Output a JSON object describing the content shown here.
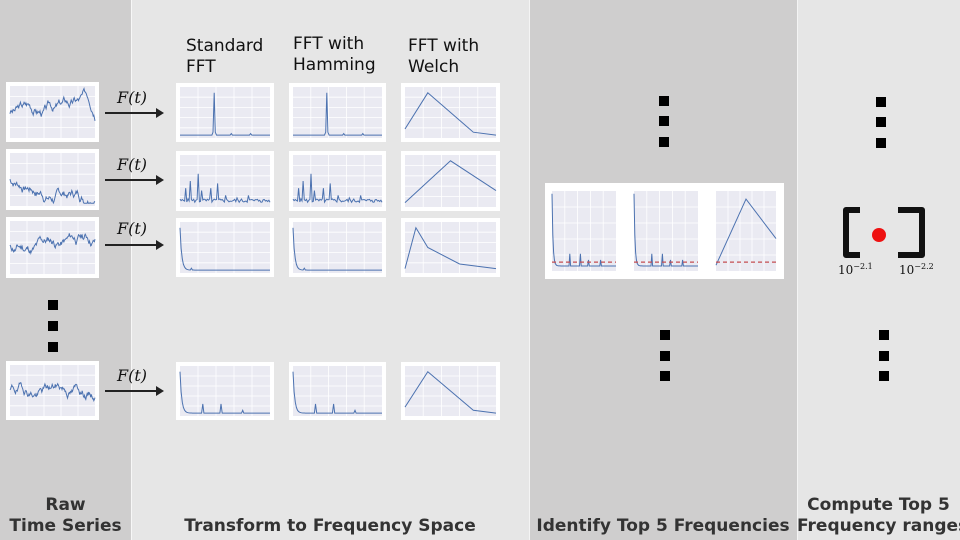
{
  "stages": {
    "raw": "Raw\nTime Series",
    "transform": "Transform to Frequency Space",
    "identify": "Identify Top 5 Frequencies",
    "compute": "Compute Top 5\nFrequency ranges"
  },
  "columns": {
    "fft": "Standard\nFFT",
    "hamming": "FFT with\nHamming",
    "welch": "FFT with\nWelch"
  },
  "transform_label": "F(t)",
  "range": {
    "low_base": "10",
    "low_exp": "−2.1",
    "high_base": "10",
    "high_exp": "−2.2",
    "marker_color": "#ee1111"
  },
  "colors": {
    "line": "#4c72b0",
    "plot_bg": "#eaeaf2",
    "threshold": "#c44e52"
  }
}
